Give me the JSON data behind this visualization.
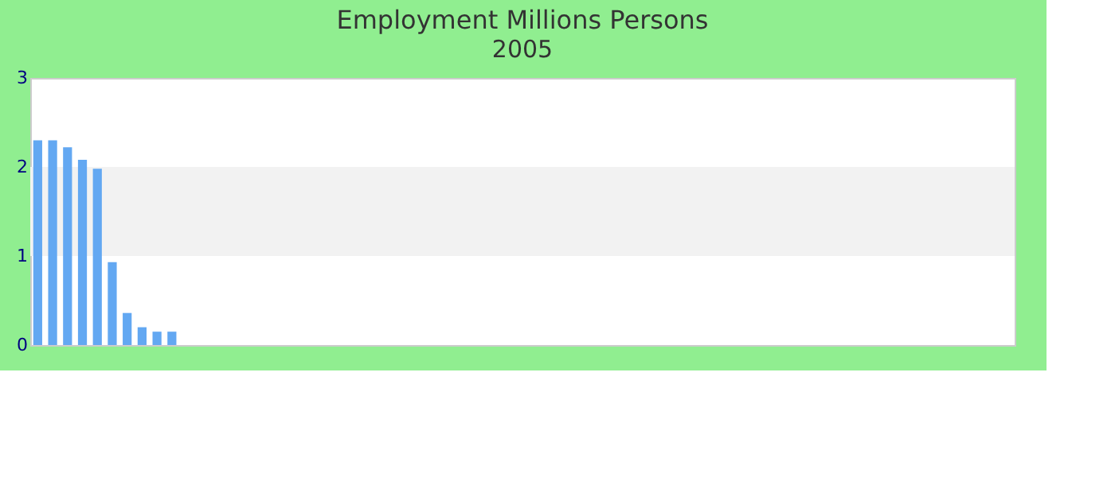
{
  "chart_data": {
    "type": "bar",
    "title": "Employment Millions Persons",
    "subtitle": "2005",
    "categories": [
      null,
      null,
      null,
      null,
      null,
      null,
      null,
      null,
      null,
      null
    ],
    "values": [
      2.3,
      2.3,
      2.22,
      2.08,
      1.98,
      0.93,
      0.36,
      0.2,
      0.15,
      0.15
    ],
    "color": "#63a8f2",
    "ylim": [
      0,
      3
    ],
    "yticks": [
      0,
      1,
      2,
      3
    ],
    "grid": false,
    "bands": [
      {
        "axis": "y",
        "from": 1,
        "to": 2,
        "color": "#f2f2f2"
      }
    ]
  }
}
